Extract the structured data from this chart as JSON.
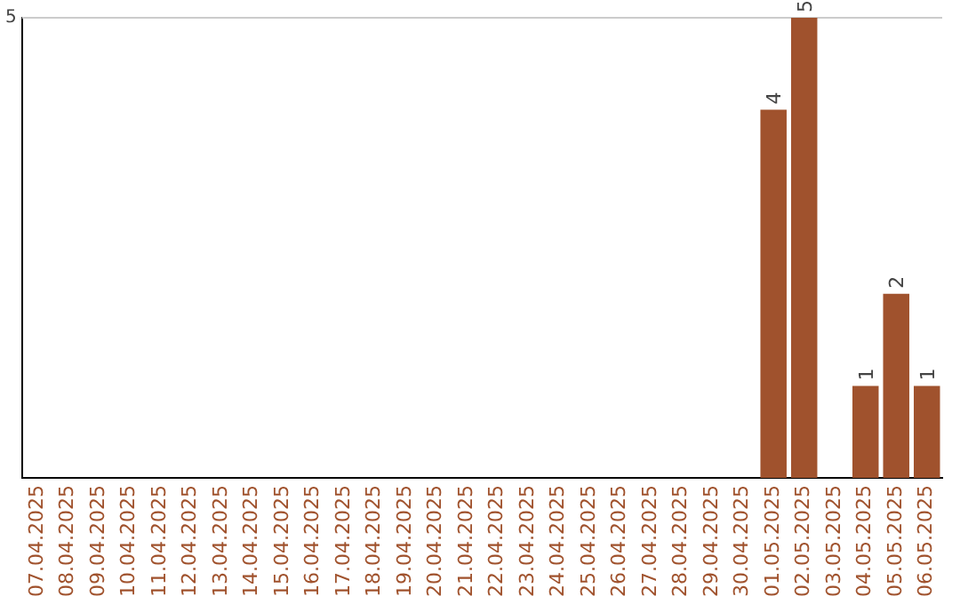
{
  "chart_data": {
    "type": "bar",
    "categories": [
      "07.04.2025",
      "08.04.2025",
      "09.04.2025",
      "10.04.2025",
      "11.04.2025",
      "12.04.2025",
      "13.04.2025",
      "14.04.2025",
      "15.04.2025",
      "16.04.2025",
      "17.04.2025",
      "18.04.2025",
      "19.04.2025",
      "20.04.2025",
      "21.04.2025",
      "22.04.2025",
      "23.04.2025",
      "24.04.2025",
      "25.04.2025",
      "26.04.2025",
      "27.04.2025",
      "28.04.2025",
      "29.04.2025",
      "30.04.2025",
      "01.05.2025",
      "02.05.2025",
      "03.05.2025",
      "04.05.2025",
      "05.05.2025",
      "06.05.2025"
    ],
    "values": [
      null,
      null,
      null,
      null,
      null,
      null,
      null,
      null,
      null,
      null,
      null,
      null,
      null,
      null,
      null,
      null,
      null,
      null,
      null,
      null,
      null,
      null,
      null,
      null,
      4,
      5,
      null,
      1,
      2,
      1
    ],
    "data_labels": true,
    "color": "#a0522d",
    "ylim": [
      0,
      5
    ],
    "yticks": [
      5
    ],
    "ref_lines": [
      {
        "axis": "y",
        "value": 5,
        "color": "#cccccc"
      }
    ],
    "legend": false
  }
}
